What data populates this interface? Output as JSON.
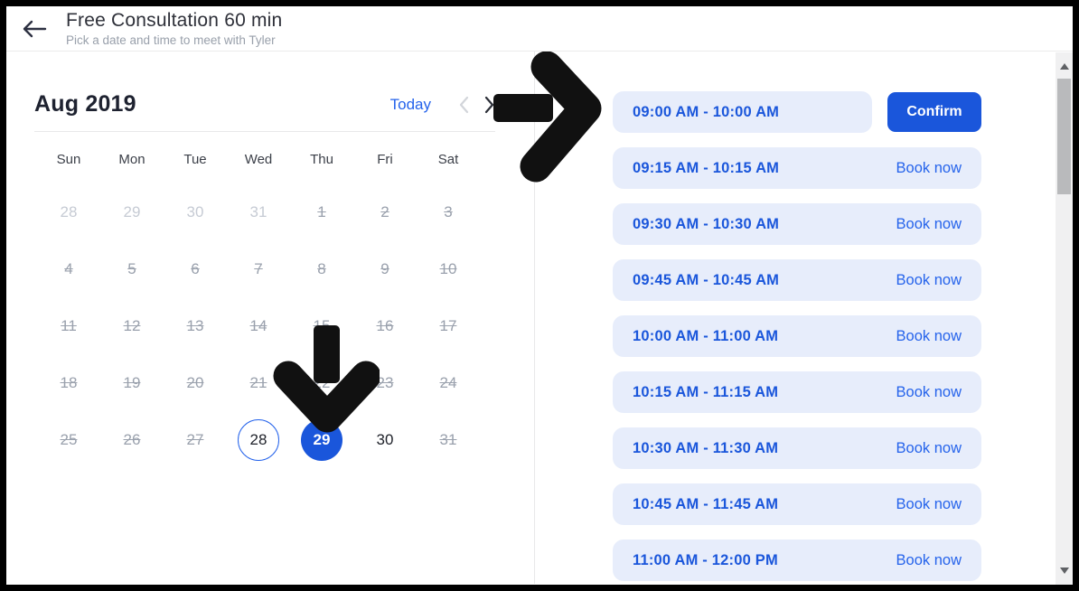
{
  "header": {
    "back_icon": "arrow-left",
    "title": "Free Consultation 60 min",
    "subtitle": "Pick a date and time to meet with Tyler"
  },
  "calendar": {
    "month_label": "Aug 2019",
    "today_label": "Today",
    "prev_icon": "chevron-left",
    "next_icon": "chevron-right",
    "day_headers": [
      "Sun",
      "Mon",
      "Tue",
      "Wed",
      "Thu",
      "Fri",
      "Sat"
    ],
    "weeks": [
      [
        {
          "day": "28",
          "state": "outside"
        },
        {
          "day": "29",
          "state": "outside"
        },
        {
          "day": "30",
          "state": "outside"
        },
        {
          "day": "31",
          "state": "outside"
        },
        {
          "day": "1",
          "state": "disabled"
        },
        {
          "day": "2",
          "state": "disabled"
        },
        {
          "day": "3",
          "state": "disabled"
        }
      ],
      [
        {
          "day": "4",
          "state": "disabled"
        },
        {
          "day": "5",
          "state": "disabled"
        },
        {
          "day": "6",
          "state": "disabled"
        },
        {
          "day": "7",
          "state": "disabled"
        },
        {
          "day": "8",
          "state": "disabled"
        },
        {
          "day": "9",
          "state": "disabled"
        },
        {
          "day": "10",
          "state": "disabled"
        }
      ],
      [
        {
          "day": "11",
          "state": "disabled"
        },
        {
          "day": "12",
          "state": "disabled"
        },
        {
          "day": "13",
          "state": "disabled"
        },
        {
          "day": "14",
          "state": "disabled"
        },
        {
          "day": "15",
          "state": "disabled"
        },
        {
          "day": "16",
          "state": "disabled"
        },
        {
          "day": "17",
          "state": "disabled"
        }
      ],
      [
        {
          "day": "18",
          "state": "disabled"
        },
        {
          "day": "19",
          "state": "disabled"
        },
        {
          "day": "20",
          "state": "disabled"
        },
        {
          "day": "21",
          "state": "disabled"
        },
        {
          "day": "22",
          "state": "disabled"
        },
        {
          "day": "23",
          "state": "disabled"
        },
        {
          "day": "24",
          "state": "disabled"
        }
      ],
      [
        {
          "day": "25",
          "state": "disabled"
        },
        {
          "day": "26",
          "state": "disabled"
        },
        {
          "day": "27",
          "state": "disabled"
        },
        {
          "day": "28",
          "state": "outlined"
        },
        {
          "day": "29",
          "state": "selected"
        },
        {
          "day": "30",
          "state": "available"
        },
        {
          "day": "31",
          "state": "disabled"
        }
      ]
    ],
    "selected_day": "29"
  },
  "slots": [
    {
      "time": "09:00 AM - 10:00 AM",
      "action": "Confirm",
      "selected": true
    },
    {
      "time": "09:15 AM - 10:15 AM",
      "action": "Book now",
      "selected": false
    },
    {
      "time": "09:30 AM - 10:30 AM",
      "action": "Book now",
      "selected": false
    },
    {
      "time": "09:45 AM - 10:45 AM",
      "action": "Book now",
      "selected": false
    },
    {
      "time": "10:00 AM - 11:00 AM",
      "action": "Book now",
      "selected": false
    },
    {
      "time": "10:15 AM - 11:15 AM",
      "action": "Book now",
      "selected": false
    },
    {
      "time": "10:30 AM - 11:30 AM",
      "action": "Book now",
      "selected": false
    },
    {
      "time": "10:45 AM - 11:45 AM",
      "action": "Book now",
      "selected": false
    },
    {
      "time": "11:00 AM - 12:00 PM",
      "action": "Book now",
      "selected": false
    }
  ],
  "annotations": {
    "right_arrow_icon": "arrow-right-annotation",
    "down_arrow_icon": "arrow-down-annotation"
  },
  "colors": {
    "accent": "#1a56db",
    "link_blue": "#2563eb",
    "slot_bg": "#e7edfb",
    "disabled_gray": "#9aa1ad",
    "outside_gray": "#c6cbd4"
  }
}
